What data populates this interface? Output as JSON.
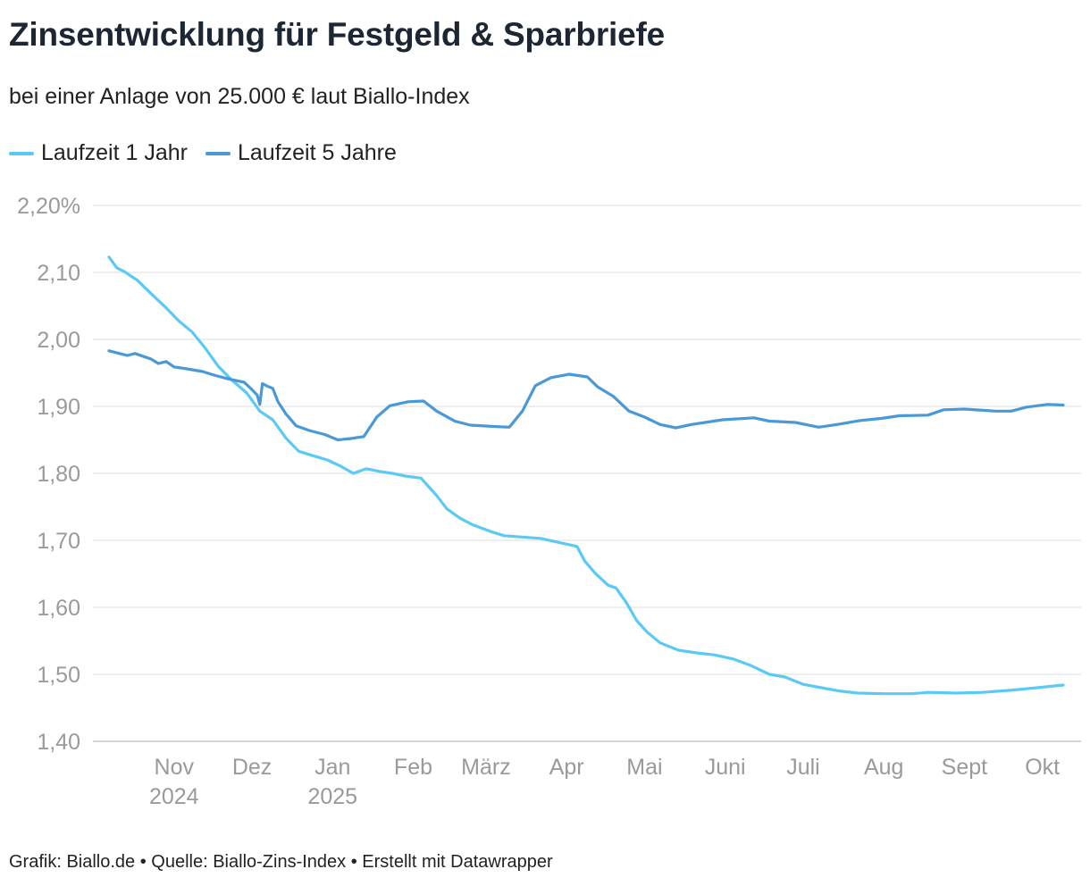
{
  "title": "Zinsentwicklung für Festgeld & Sparbriefe",
  "subtitle": "bei einer Anlage von 25.000 € laut Biallo-Index",
  "footer": "Grafik: Biallo.de • Quelle: Biallo-Zins-Index • Erstellt mit Datawrapper",
  "chart_data": {
    "type": "line",
    "title": "Zinsentwicklung für Festgeld & Sparbriefe",
    "xlabel": "",
    "ylabel": "",
    "x_unit": "days since 2024-10-07",
    "xlim": [
      0,
      367
    ],
    "ylim": [
      1.4,
      2.2
    ],
    "grid": true,
    "legend_position": "top-left",
    "y_ticks": [
      {
        "value": 2.2,
        "label": "2,20%"
      },
      {
        "value": 2.1,
        "label": "2,10"
      },
      {
        "value": 2.0,
        "label": "2,00"
      },
      {
        "value": 1.9,
        "label": "1,90"
      },
      {
        "value": 1.8,
        "label": "1,80"
      },
      {
        "value": 1.7,
        "label": "1,70"
      },
      {
        "value": 1.6,
        "label": "1,60"
      },
      {
        "value": 1.5,
        "label": "1,50"
      },
      {
        "value": 1.4,
        "label": "1,40"
      }
    ],
    "x_ticks": [
      {
        "value": 25,
        "label": "Nov",
        "sub": "2024"
      },
      {
        "value": 55,
        "label": "Dez",
        "sub": ""
      },
      {
        "value": 86,
        "label": "Jan",
        "sub": "2025"
      },
      {
        "value": 117,
        "label": "Feb",
        "sub": ""
      },
      {
        "value": 145,
        "label": "März",
        "sub": ""
      },
      {
        "value": 176,
        "label": "Apr",
        "sub": ""
      },
      {
        "value": 206,
        "label": "Mai",
        "sub": ""
      },
      {
        "value": 237,
        "label": "Juni",
        "sub": ""
      },
      {
        "value": 267,
        "label": "Juli",
        "sub": ""
      },
      {
        "value": 298,
        "label": "Aug",
        "sub": ""
      },
      {
        "value": 329,
        "label": "Sept",
        "sub": ""
      },
      {
        "value": 359,
        "label": "Okt",
        "sub": ""
      }
    ],
    "series": [
      {
        "name": "Laufzeit 1 Jahr",
        "color": "#5bc9f6",
        "x": [
          0,
          3,
          6,
          11,
          16,
          22,
          27,
          32,
          37,
          42,
          47,
          53,
          58,
          63,
          68,
          73,
          78,
          84,
          89,
          94,
          99,
          104,
          109,
          114,
          120,
          123,
          126,
          130,
          135,
          140,
          147,
          152,
          159,
          166,
          173,
          180,
          183,
          187,
          192,
          195,
          199,
          203,
          207,
          212,
          219,
          226,
          233,
          240,
          247,
          254,
          260,
          267,
          274,
          281,
          288,
          298,
          309,
          315,
          326,
          336,
          346,
          357,
          367
        ],
        "y": [
          2.123,
          2.107,
          2.101,
          2.088,
          2.069,
          2.047,
          2.027,
          2.011,
          1.987,
          1.96,
          1.94,
          1.92,
          1.893,
          1.88,
          1.853,
          1.833,
          1.827,
          1.82,
          1.811,
          1.8,
          1.807,
          1.803,
          1.8,
          1.796,
          1.793,
          1.78,
          1.767,
          1.747,
          1.733,
          1.723,
          1.713,
          1.707,
          1.705,
          1.703,
          1.697,
          1.691,
          1.669,
          1.651,
          1.633,
          1.629,
          1.607,
          1.58,
          1.563,
          1.547,
          1.536,
          1.532,
          1.529,
          1.523,
          1.513,
          1.5,
          1.496,
          1.485,
          1.48,
          1.475,
          1.472,
          1.471,
          1.471,
          1.473,
          1.472,
          1.473,
          1.476,
          1.48,
          1.484
        ]
      },
      {
        "name": "Laufzeit 5 Jahre",
        "color": "#4a99d6",
        "x": [
          0,
          7,
          10,
          16,
          19,
          22,
          25,
          30,
          36,
          41,
          46,
          52,
          55,
          57,
          58,
          59,
          61,
          63,
          65,
          68,
          72,
          77,
          83,
          88,
          93,
          98,
          103,
          108,
          115,
          121,
          126,
          133,
          139,
          148,
          154,
          159,
          164,
          170,
          177,
          184,
          188,
          194,
          200,
          206,
          212,
          218,
          224,
          236,
          248,
          254,
          264,
          273,
          280,
          289,
          297,
          304,
          315,
          321,
          329,
          341,
          347,
          353,
          361,
          367
        ],
        "y": [
          1.983,
          1.976,
          1.979,
          1.971,
          1.964,
          1.967,
          1.959,
          1.956,
          1.952,
          1.946,
          1.941,
          1.936,
          1.925,
          1.917,
          1.903,
          1.934,
          1.93,
          1.927,
          1.907,
          1.889,
          1.871,
          1.864,
          1.858,
          1.85,
          1.852,
          1.855,
          1.884,
          1.901,
          1.907,
          1.908,
          1.893,
          1.878,
          1.872,
          1.87,
          1.869,
          1.893,
          1.931,
          1.943,
          1.948,
          1.944,
          1.929,
          1.915,
          1.893,
          1.884,
          1.873,
          1.868,
          1.873,
          1.88,
          1.883,
          1.878,
          1.876,
          1.869,
          1.873,
          1.879,
          1.882,
          1.886,
          1.887,
          1.895,
          1.896,
          1.893,
          1.893,
          1.899,
          1.903,
          1.902
        ]
      }
    ]
  }
}
